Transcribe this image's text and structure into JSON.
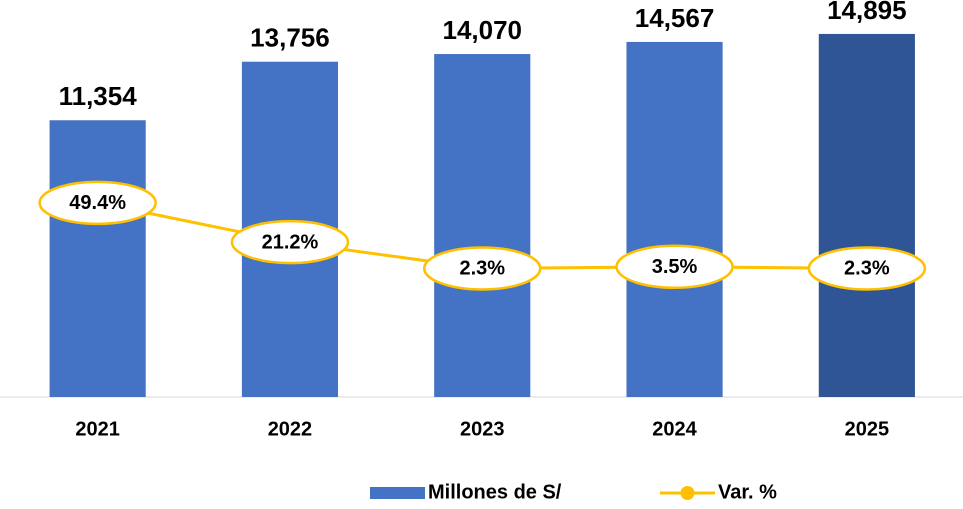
{
  "chart_data": {
    "type": "bar_line",
    "categories": [
      "2021",
      "2022",
      "2023",
      "2024",
      "2025"
    ],
    "series": [
      {
        "name": "Millones de S/",
        "type": "bar",
        "color": "#4472c4",
        "colors": [
          "#4472c4",
          "#4472c4",
          "#4472c4",
          "#4472c4",
          "#2f5597"
        ],
        "label_colors": [
          "#000000",
          "#000000",
          "#000000",
          "#000000",
          "#0070c0"
        ],
        "values": [
          11354,
          13756,
          14070,
          14567,
          14895
        ],
        "value_labels": [
          "11,354",
          "13,756",
          "14,070",
          "14,567",
          "14,895"
        ]
      },
      {
        "name": "Var. %",
        "type": "line",
        "axis": "y2",
        "color": "#ffc000",
        "values": [
          49.4,
          21.2,
          2.3,
          3.5,
          2.3
        ],
        "value_labels": [
          "49.4%",
          "21.2%",
          "2.3%",
          "3.5%",
          "2.3%"
        ]
      }
    ],
    "ylim": [
      0,
      16000
    ],
    "y2lim": [
      -90,
      190
    ],
    "legend": "bottom"
  }
}
